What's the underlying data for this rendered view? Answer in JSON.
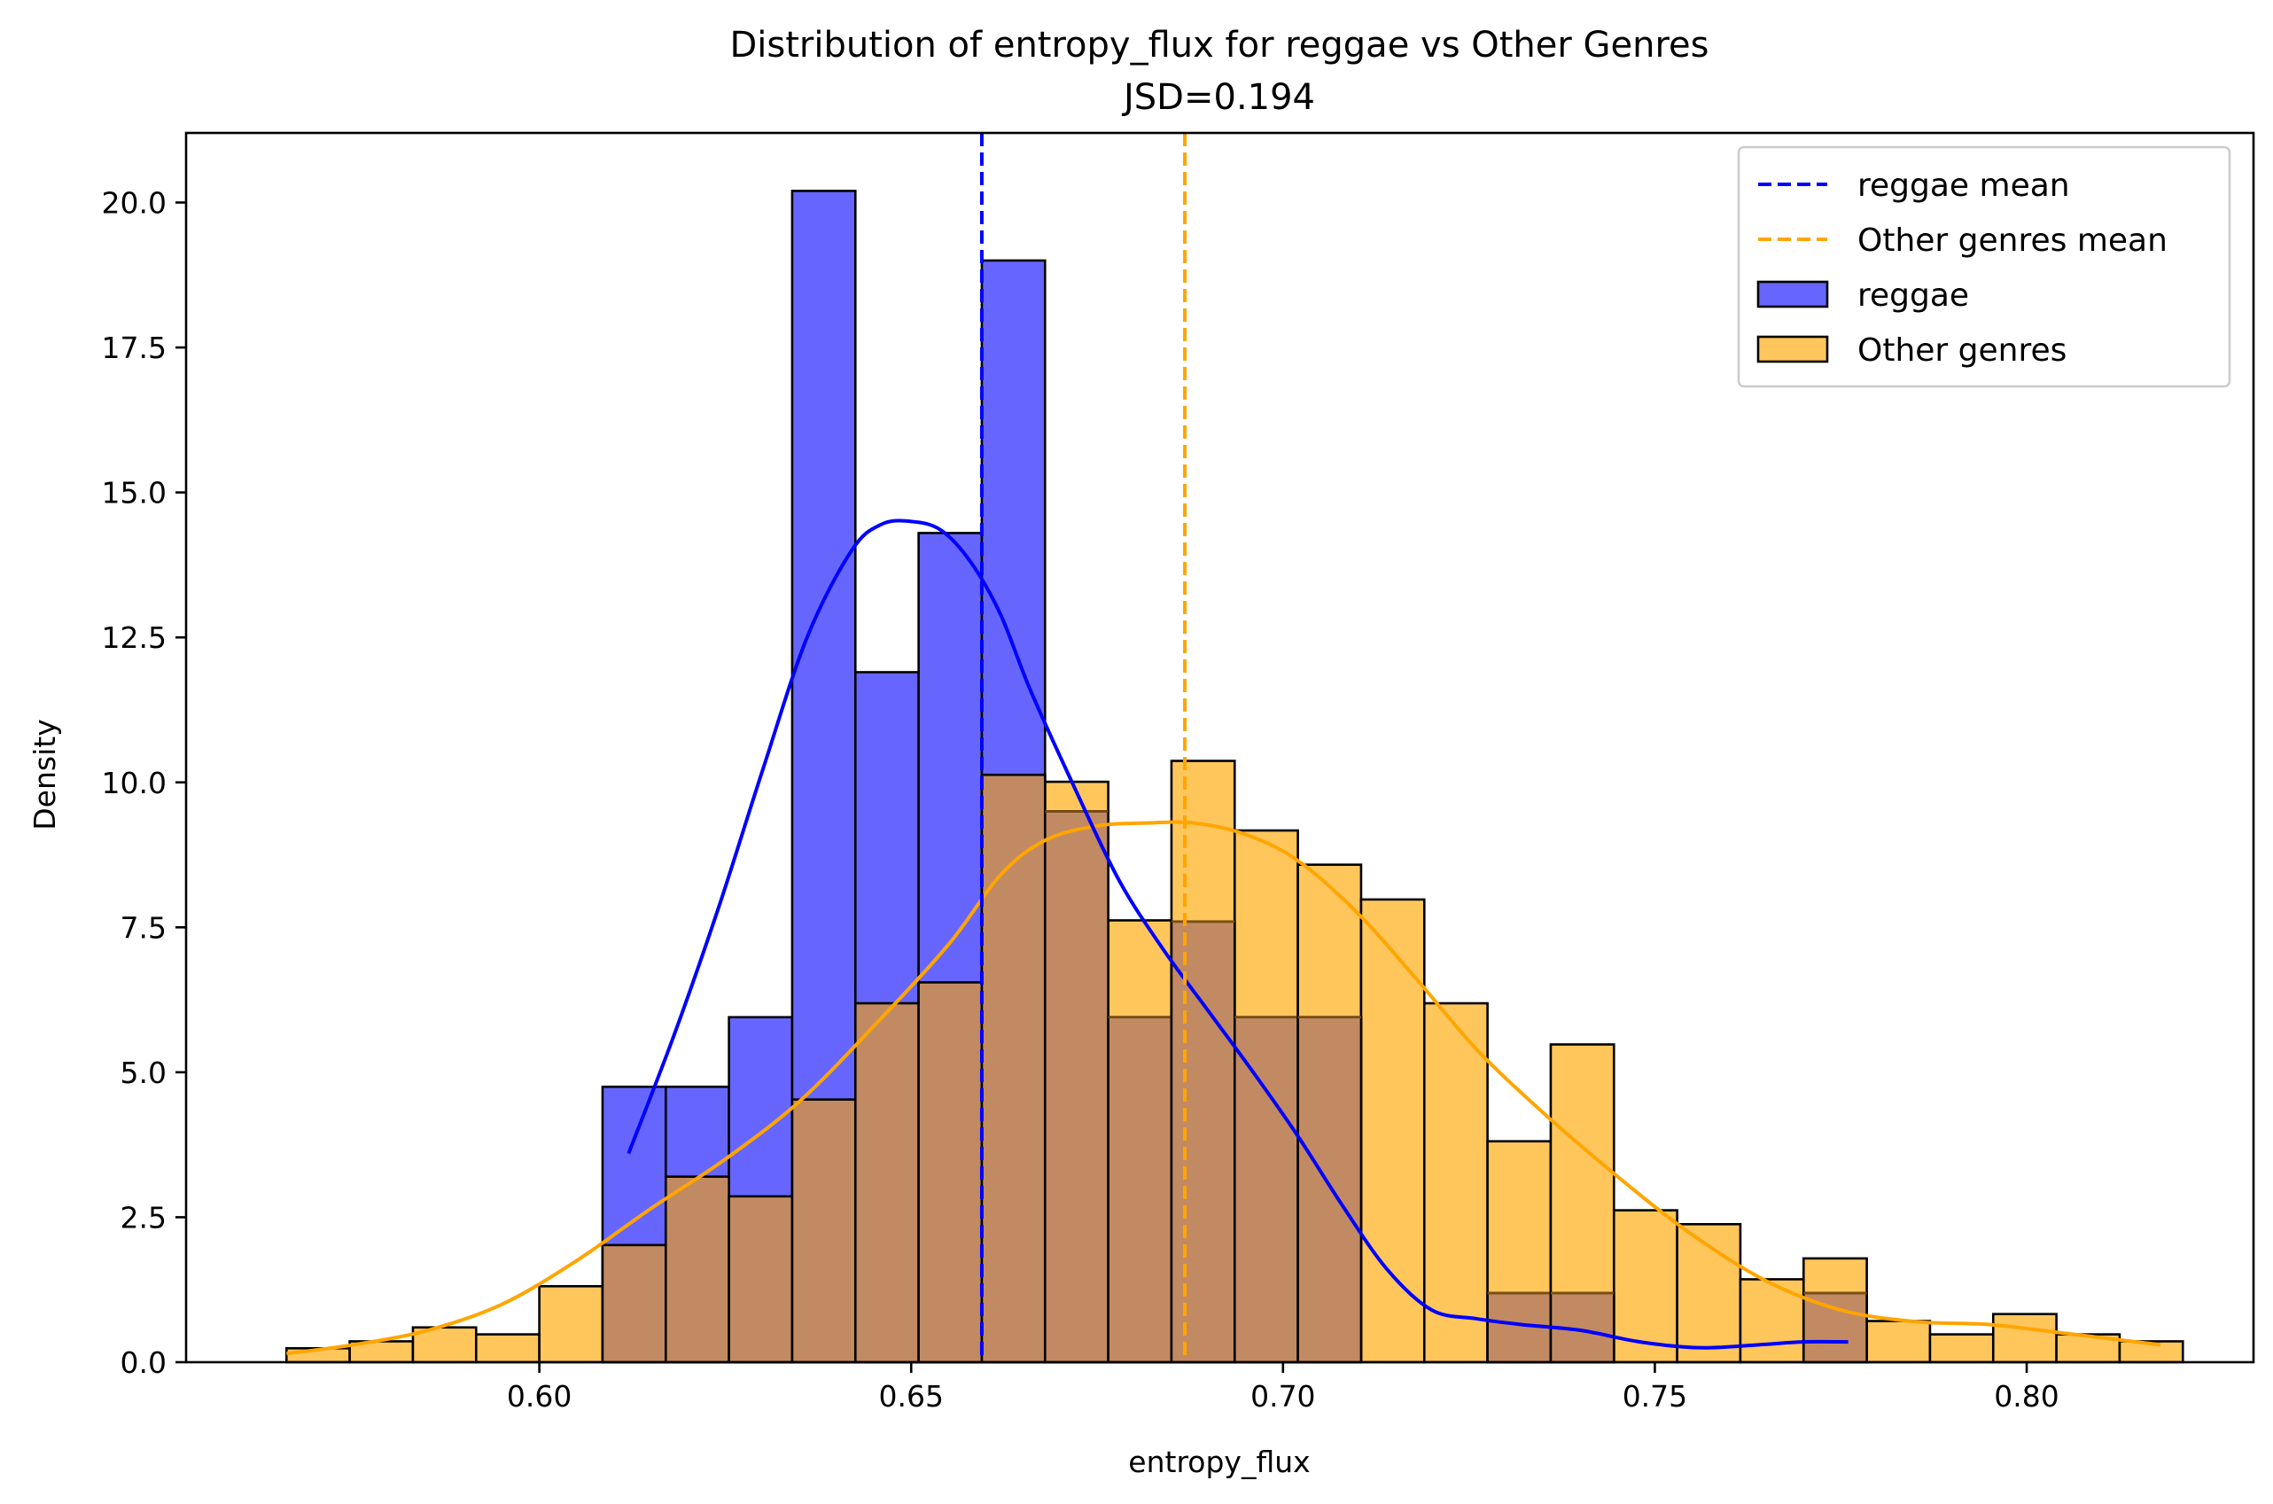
{
  "chart_data": {
    "type": "bar",
    "subtype": "histogram-with-kde",
    "title": "Distribution of entropy_flux for reggae vs Other Genres",
    "subtitle": "JSD=0.194",
    "xlabel": "entropy_flux",
    "ylabel": "Density",
    "xlim": [
      0.5525,
      0.8305
    ],
    "ylim": [
      0,
      21.2
    ],
    "x_ticks": [
      0.6,
      0.65,
      0.7,
      0.75,
      0.8
    ],
    "x_tick_labels": [
      "0.60",
      "0.65",
      "0.70",
      "0.75",
      "0.80"
    ],
    "y_ticks": [
      0.0,
      2.5,
      5.0,
      7.5,
      10.0,
      12.5,
      15.0,
      17.5,
      20.0
    ],
    "y_tick_labels": [
      "0.0",
      "2.5",
      "5.0",
      "7.5",
      "10.0",
      "12.5",
      "15.0",
      "17.5",
      "20.0"
    ],
    "grid": false,
    "legend_position": "top-right",
    "legend": [
      {
        "label": "reggae mean",
        "kind": "dashed-line",
        "color": "#0000ff"
      },
      {
        "label": "Other genres mean",
        "kind": "dashed-line",
        "color": "#ffa500"
      },
      {
        "label": "reggae",
        "kind": "patch",
        "color": "#6666ff"
      },
      {
        "label": "Other genres",
        "kind": "patch",
        "color": "#ffc65c"
      }
    ],
    "series": [
      {
        "name": "reggae",
        "color": "#0000ff",
        "fill": "#6666ff",
        "bins": [
          {
            "x0": 0.6085,
            "x1": 0.617,
            "value": 4.75
          },
          {
            "x0": 0.617,
            "x1": 0.6255,
            "value": 4.75
          },
          {
            "x0": 0.6255,
            "x1": 0.634,
            "value": 5.95
          },
          {
            "x0": 0.634,
            "x1": 0.6425,
            "value": 20.2
          },
          {
            "x0": 0.6425,
            "x1": 0.651,
            "value": 11.9
          },
          {
            "x0": 0.651,
            "x1": 0.6595,
            "value": 14.3
          },
          {
            "x0": 0.6595,
            "x1": 0.668,
            "value": 19.0
          },
          {
            "x0": 0.668,
            "x1": 0.6765,
            "value": 9.5
          },
          {
            "x0": 0.6765,
            "x1": 0.685,
            "value": 5.95
          },
          {
            "x0": 0.685,
            "x1": 0.6935,
            "value": 7.6
          },
          {
            "x0": 0.6935,
            "x1": 0.702,
            "value": 5.95
          },
          {
            "x0": 0.702,
            "x1": 0.7105,
            "value": 5.95
          },
          {
            "x0": 0.7105,
            "x1": 0.719,
            "value": 0
          },
          {
            "x0": 0.719,
            "x1": 0.7275,
            "value": 0
          },
          {
            "x0": 0.7275,
            "x1": 0.736,
            "value": 1.19
          },
          {
            "x0": 0.736,
            "x1": 0.7445,
            "value": 1.19
          },
          {
            "x0": 0.7445,
            "x1": 0.753,
            "value": 0
          },
          {
            "x0": 0.753,
            "x1": 0.7615,
            "value": 0
          },
          {
            "x0": 0.7615,
            "x1": 0.77,
            "value": 0
          },
          {
            "x0": 0.77,
            "x1": 0.7785,
            "value": 1.19
          }
        ],
        "kde": {
          "x": [
            0.612,
            0.618,
            0.624,
            0.63,
            0.636,
            0.642,
            0.646,
            0.65,
            0.654,
            0.658,
            0.662,
            0.666,
            0.672,
            0.678,
            0.684,
            0.69,
            0.696,
            0.702,
            0.708,
            0.714,
            0.72,
            0.726,
            0.732,
            0.74,
            0.748,
            0.756,
            0.764,
            0.77,
            0.776
          ],
          "y": [
            3.6,
            5.6,
            7.8,
            10.2,
            12.5,
            14.0,
            14.45,
            14.5,
            14.35,
            13.8,
            12.9,
            11.6,
            9.9,
            8.3,
            7.1,
            6.05,
            5.0,
            3.9,
            2.7,
            1.6,
            0.9,
            0.75,
            0.65,
            0.55,
            0.35,
            0.25,
            0.3,
            0.35,
            0.35
          ]
        },
        "mean": 0.6595
      },
      {
        "name": "Other genres",
        "color": "#ffa500",
        "fill": "#ffc65c",
        "bins": [
          {
            "x0": 0.566,
            "x1": 0.5745,
            "value": 0.24
          },
          {
            "x0": 0.5745,
            "x1": 0.583,
            "value": 0.36
          },
          {
            "x0": 0.583,
            "x1": 0.5915,
            "value": 0.6
          },
          {
            "x0": 0.5915,
            "x1": 0.6,
            "value": 0.48
          },
          {
            "x0": 0.6,
            "x1": 0.6085,
            "value": 1.31
          },
          {
            "x0": 0.6085,
            "x1": 0.617,
            "value": 2.02
          },
          {
            "x0": 0.617,
            "x1": 0.6255,
            "value": 3.2
          },
          {
            "x0": 0.6255,
            "x1": 0.634,
            "value": 2.86
          },
          {
            "x0": 0.634,
            "x1": 0.6425,
            "value": 4.53
          },
          {
            "x0": 0.6425,
            "x1": 0.651,
            "value": 6.19
          },
          {
            "x0": 0.651,
            "x1": 0.6595,
            "value": 6.55
          },
          {
            "x0": 0.6595,
            "x1": 0.668,
            "value": 10.13
          },
          {
            "x0": 0.668,
            "x1": 0.6765,
            "value": 10.01
          },
          {
            "x0": 0.6765,
            "x1": 0.685,
            "value": 7.62
          },
          {
            "x0": 0.685,
            "x1": 0.6935,
            "value": 10.37
          },
          {
            "x0": 0.6935,
            "x1": 0.702,
            "value": 9.17
          },
          {
            "x0": 0.702,
            "x1": 0.7105,
            "value": 8.58
          },
          {
            "x0": 0.7105,
            "x1": 0.719,
            "value": 7.98
          },
          {
            "x0": 0.719,
            "x1": 0.7275,
            "value": 6.19
          },
          {
            "x0": 0.7275,
            "x1": 0.736,
            "value": 3.81
          },
          {
            "x0": 0.736,
            "x1": 0.7445,
            "value": 5.48
          },
          {
            "x0": 0.7445,
            "x1": 0.753,
            "value": 2.62
          },
          {
            "x0": 0.753,
            "x1": 0.7615,
            "value": 2.38
          },
          {
            "x0": 0.7615,
            "x1": 0.77,
            "value": 1.43
          },
          {
            "x0": 0.77,
            "x1": 0.7785,
            "value": 1.79
          },
          {
            "x0": 0.7785,
            "x1": 0.787,
            "value": 0.71
          },
          {
            "x0": 0.787,
            "x1": 0.7955,
            "value": 0.48
          },
          {
            "x0": 0.7955,
            "x1": 0.804,
            "value": 0.83
          },
          {
            "x0": 0.804,
            "x1": 0.8125,
            "value": 0.48
          },
          {
            "x0": 0.8125,
            "x1": 0.821,
            "value": 0.36
          }
        ],
        "kde": {
          "x": [
            0.566,
            0.575,
            0.585,
            0.595,
            0.605,
            0.615,
            0.625,
            0.635,
            0.645,
            0.655,
            0.662,
            0.668,
            0.675,
            0.682,
            0.688,
            0.695,
            0.702,
            0.71,
            0.718,
            0.726,
            0.735,
            0.745,
            0.755,
            0.765,
            0.775,
            0.785,
            0.795,
            0.805,
            0.818
          ],
          "y": [
            0.15,
            0.3,
            0.55,
            1.0,
            1.75,
            2.65,
            3.5,
            4.5,
            5.8,
            7.2,
            8.4,
            9.0,
            9.25,
            9.3,
            9.3,
            9.1,
            8.65,
            7.75,
            6.6,
            5.4,
            4.3,
            3.2,
            2.2,
            1.4,
            0.9,
            0.7,
            0.65,
            0.5,
            0.3
          ]
        },
        "mean": 0.6868
      }
    ]
  }
}
